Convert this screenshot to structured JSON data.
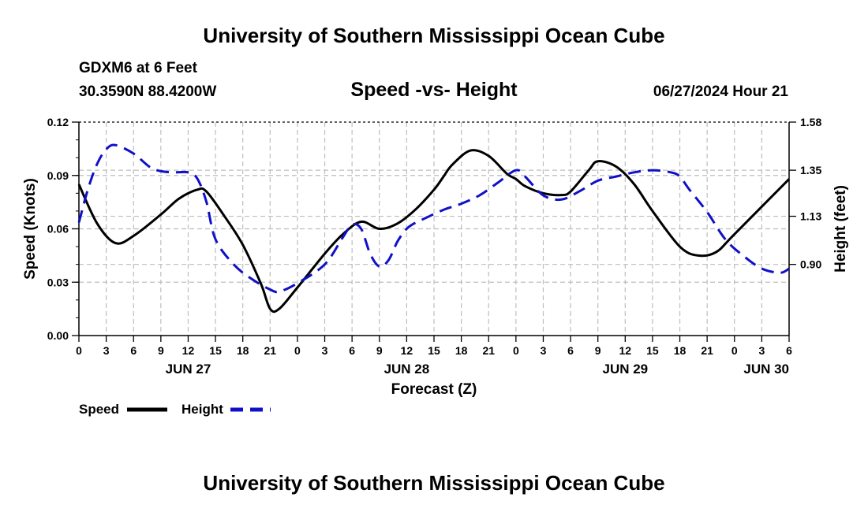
{
  "header": {
    "title": "University of Southern Mississippi Ocean Cube",
    "station": "GDXM6 at 6 Feet",
    "coords": "30.3590N  88.4200W",
    "subtitle": "Speed -vs- Height",
    "run_time": "06/27/2024 Hour 21"
  },
  "footer": {
    "title": "University of Southern Mississippi Ocean Cube"
  },
  "chart_data": {
    "type": "line",
    "title": "Speed -vs- Height",
    "xlabel": "Forecast (Z)",
    "ylabel": "Speed (Knots)",
    "y2label": "Height (feet)",
    "x_hours": [
      0,
      78
    ],
    "x_tick_step_hours": 3,
    "x_tick_labels": [
      "0",
      "3",
      "6",
      "9",
      "12",
      "15",
      "18",
      "21",
      "0",
      "3",
      "6",
      "9",
      "12",
      "15",
      "18",
      "21",
      "0",
      "3",
      "6",
      "9",
      "12",
      "15",
      "18",
      "21",
      "0",
      "3",
      "6"
    ],
    "date_labels": [
      {
        "hour": 12,
        "label": "JUN 27"
      },
      {
        "hour": 36,
        "label": "JUN 28"
      },
      {
        "hour": 60,
        "label": "JUN 29"
      },
      {
        "hour": 78,
        "label": "JUN 30"
      }
    ],
    "ylim": [
      0,
      0.12
    ],
    "y_ticks": [
      0,
      0.03,
      0.06,
      0.09,
      0.12
    ],
    "y_tick_labels": [
      "0.00",
      "0.03",
      "0.06",
      "0.09",
      "0.12"
    ],
    "y2lim": [
      0.56,
      1.58
    ],
    "y2_ticks": [
      0.9,
      1.13,
      1.35,
      1.58
    ],
    "y2_tick_labels": [
      "0.90",
      "1.13",
      "1.35",
      "1.58"
    ],
    "grid": true,
    "legend_placement": "bottom-left",
    "series": [
      {
        "name": "Speed",
        "axis": "left",
        "color": "#000000",
        "dash": "solid",
        "x": [
          0,
          2,
          4,
          6,
          9,
          11,
          13,
          14,
          16,
          18,
          20,
          21,
          22,
          24,
          27,
          29,
          31,
          33,
          35,
          37,
          39,
          40,
          41,
          43,
          45,
          47,
          48,
          49,
          51,
          53,
          54,
          56,
          57,
          59,
          61,
          63,
          66,
          68,
          70,
          72,
          78
        ],
        "values": [
          0.085,
          0.063,
          0.052,
          0.056,
          0.068,
          0.077,
          0.082,
          0.081,
          0.067,
          0.051,
          0.029,
          0.015,
          0.015,
          0.027,
          0.046,
          0.057,
          0.064,
          0.06,
          0.063,
          0.071,
          0.082,
          0.089,
          0.096,
          0.104,
          0.101,
          0.091,
          0.088,
          0.084,
          0.08,
          0.079,
          0.081,
          0.093,
          0.098,
          0.095,
          0.085,
          0.07,
          0.05,
          0.045,
          0.047,
          0.057,
          0.088
        ]
      },
      {
        "name": "Height",
        "axis": "right",
        "color": "#1010c8",
        "dash": "dashed",
        "x": [
          0,
          1,
          2,
          3,
          4,
          6,
          8,
          10,
          12,
          13,
          14,
          15,
          17,
          19,
          21,
          22,
          24,
          27,
          29,
          30,
          31,
          32,
          33,
          34,
          35,
          36,
          37,
          38,
          40,
          42,
          44,
          46,
          48,
          49,
          51,
          53,
          55,
          57,
          59,
          61,
          63,
          65,
          66,
          67,
          69,
          71,
          73,
          75,
          77,
          78
        ],
        "values": [
          1.1,
          1.26,
          1.38,
          1.45,
          1.47,
          1.43,
          1.36,
          1.34,
          1.34,
          1.31,
          1.2,
          1.02,
          0.9,
          0.83,
          0.78,
          0.77,
          0.81,
          0.9,
          1.03,
          1.09,
          1.07,
          0.95,
          0.89,
          0.92,
          1.01,
          1.07,
          1.1,
          1.12,
          1.16,
          1.19,
          1.23,
          1.29,
          1.35,
          1.32,
          1.23,
          1.21,
          1.25,
          1.3,
          1.32,
          1.34,
          1.35,
          1.34,
          1.32,
          1.26,
          1.15,
          1.02,
          0.94,
          0.88,
          0.86,
          0.88
        ]
      }
    ]
  }
}
